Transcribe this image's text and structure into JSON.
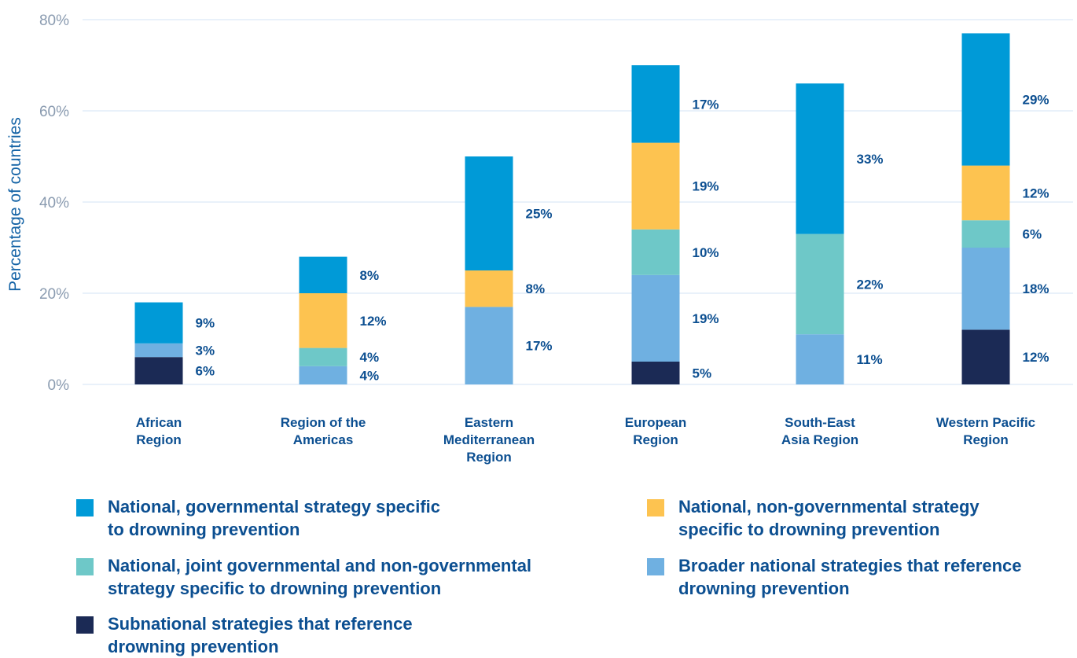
{
  "chart_data": {
    "type": "bar",
    "stacked": true,
    "ylabel": "Percentage of countries",
    "ylim": [
      0,
      80
    ],
    "yticks": [
      "0%",
      "20%",
      "40%",
      "60%",
      "80%"
    ],
    "ytick_values": [
      0,
      20,
      40,
      60,
      80
    ],
    "grid": true,
    "categories": [
      "African\nRegion",
      "Region of the\nAmericas",
      "Eastern\nMediterranean\nRegion",
      "European\nRegion",
      "South-East\nAsia Region",
      "Western Pacific\nRegion"
    ],
    "series": [
      {
        "name": "Subnational strategies that reference drowning prevention",
        "color": "#1b2a55",
        "values": [
          6,
          0,
          0,
          5,
          0,
          12
        ]
      },
      {
        "name": "Broader national strategies that reference drowning prevention",
        "color": "#6fb0e1",
        "values": [
          3,
          4,
          17,
          19,
          11,
          18
        ]
      },
      {
        "name": "National, joint governmental and non-governmental strategy specific to drowning prevention",
        "color": "#6ec8c8",
        "values": [
          0,
          4,
          0,
          10,
          22,
          6
        ]
      },
      {
        "name": "National, non-governmental strategy specific to drowning prevention",
        "color": "#fdc350",
        "values": [
          0,
          12,
          8,
          19,
          0,
          12
        ]
      },
      {
        "name": "National, governmental strategy specific to drowning prevention",
        "color": "#009ad7",
        "values": [
          9,
          8,
          25,
          17,
          33,
          29
        ]
      }
    ],
    "data_labels": [
      [
        "6%",
        "",
        "",
        "5%",
        "",
        "12%"
      ],
      [
        "3%",
        "4%",
        "17%",
        "19%",
        "11%",
        "18%"
      ],
      [
        "",
        "4%",
        "",
        "10%",
        "22%",
        "6%"
      ],
      [
        "",
        "12%",
        "8%",
        "19%",
        "",
        "12%"
      ],
      [
        "9%",
        "8%",
        "25%",
        "17%",
        "33%",
        "29%"
      ]
    ]
  },
  "legend": {
    "items": [
      {
        "label": "National, governmental strategy specific\nto drowning prevention",
        "color": "#009ad7"
      },
      {
        "label": "National, non-governmental strategy\nspecific to drowning prevention",
        "color": "#fdc350"
      },
      {
        "label": "National, joint governmental and non-governmental\nstrategy specific to drowning prevention",
        "color": "#6ec8c8"
      },
      {
        "label": "Broader national strategies that reference\ndrowning prevention",
        "color": "#6fb0e1"
      },
      {
        "label": "Subnational strategies that reference\ndrowning prevention",
        "color": "#1b2a55"
      }
    ]
  }
}
